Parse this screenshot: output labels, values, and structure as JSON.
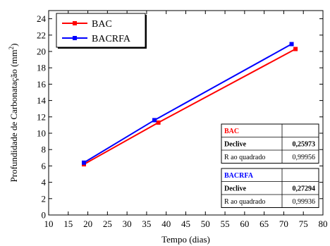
{
  "chart_data": {
    "type": "line",
    "xlabel": "Tempo (dias)",
    "ylabel": "Profundidade de Carbonatação (mm",
    "ylabel_sup": "2",
    "ylabel_end": ")",
    "xlim": [
      10,
      80
    ],
    "ylim": [
      0,
      25
    ],
    "xticks": [
      10,
      15,
      20,
      25,
      30,
      35,
      40,
      45,
      50,
      55,
      60,
      65,
      70,
      75,
      80
    ],
    "yticks": [
      0,
      2,
      4,
      6,
      8,
      10,
      12,
      14,
      16,
      18,
      20,
      22,
      24
    ],
    "legend_position": "top-left",
    "series": [
      {
        "name": "BAC",
        "color": "#ff0000",
        "x": [
          19,
          38,
          73
        ],
        "y": [
          6.2,
          11.3,
          20.3
        ]
      },
      {
        "name": "BACRFA",
        "color": "#0000ff",
        "x": [
          19,
          37,
          72
        ],
        "y": [
          6.4,
          11.6,
          20.9
        ]
      }
    ],
    "stats_tables": [
      {
        "title": "BAC",
        "title_color": "#ff0000",
        "rows": [
          {
            "label": "Declive",
            "value": "0,25973",
            "bold": true
          },
          {
            "label": "R ao quadrado",
            "value": "0,99956",
            "bold": false
          }
        ]
      },
      {
        "title": "BACRFA",
        "title_color": "#0000ff",
        "rows": [
          {
            "label": "Declive",
            "value": "0,27294",
            "bold": true
          },
          {
            "label": "R ao quadrado",
            "value": "0,99936",
            "bold": false
          }
        ]
      }
    ]
  }
}
